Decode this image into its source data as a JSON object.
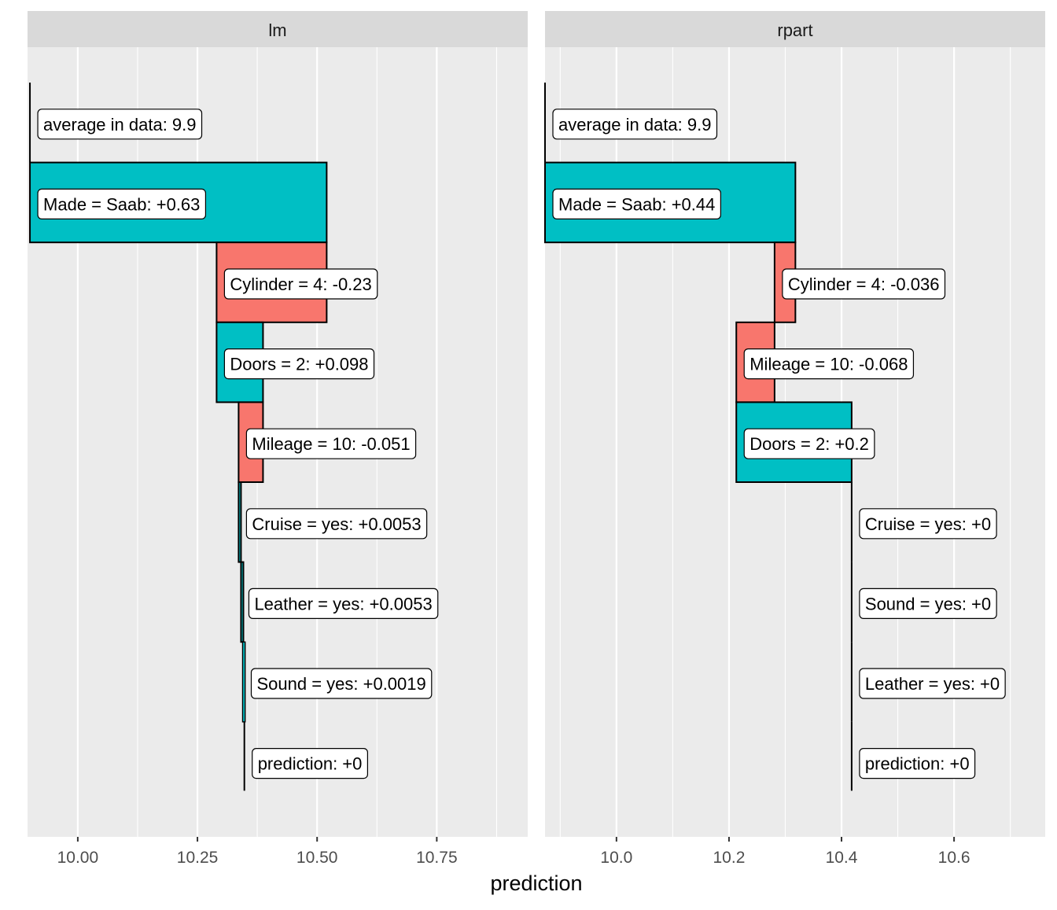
{
  "chart_data": {
    "type": "waterfall",
    "xlabel": "prediction",
    "colors": {
      "positive": "#00BFC4",
      "negative": "#F8766D",
      "panel": "#EBEBEB",
      "strip": "#D9D9D9",
      "grid": "#FFFFFF"
    },
    "panels": [
      {
        "title": "lm",
        "xlim": [
          9.895,
          10.94
        ],
        "ticks": [
          10.0,
          10.25,
          10.5,
          10.75
        ],
        "tick_labels": [
          "10.00",
          "10.25",
          "10.50",
          "10.75"
        ],
        "minor_ticks": [
          10.125,
          10.375,
          10.625,
          10.875
        ],
        "steps": [
          {
            "label": "average in data: 9.9",
            "start": 9.9,
            "end": 9.9,
            "kind": "baseline"
          },
          {
            "label": "Made = Saab: +0.63",
            "start": 9.9,
            "end": 10.52,
            "kind": "positive"
          },
          {
            "label": "Cylinder = 4: -0.23",
            "start": 10.52,
            "end": 10.29,
            "kind": "negative"
          },
          {
            "label": "Doors = 2: +0.098",
            "start": 10.29,
            "end": 10.387,
            "kind": "positive"
          },
          {
            "label": "Mileage = 10: -0.051",
            "start": 10.387,
            "end": 10.336,
            "kind": "negative"
          },
          {
            "label": "Cruise = yes: +0.0053",
            "start": 10.336,
            "end": 10.341,
            "kind": "positive"
          },
          {
            "label": "Leather = yes: +0.0053",
            "start": 10.341,
            "end": 10.346,
            "kind": "positive"
          },
          {
            "label": "Sound = yes: +0.0019",
            "start": 10.346,
            "end": 10.348,
            "kind": "positive"
          },
          {
            "label": "prediction: +0",
            "start": 10.348,
            "end": 10.348,
            "kind": "prediction"
          }
        ]
      },
      {
        "title": "rpart",
        "xlim": [
          9.873,
          10.762
        ],
        "ticks": [
          10.0,
          10.2,
          10.4,
          10.6
        ],
        "tick_labels": [
          "10.0",
          "10.2",
          "10.4",
          "10.6"
        ],
        "minor_ticks": [
          9.9,
          10.1,
          10.3,
          10.5,
          10.7
        ],
        "steps": [
          {
            "label": "average in data: 9.9",
            "start": 9.873,
            "end": 9.873,
            "kind": "baseline"
          },
          {
            "label": "Made = Saab: +0.44",
            "start": 9.873,
            "end": 10.318,
            "kind": "positive"
          },
          {
            "label": "Cylinder = 4: -0.036",
            "start": 10.318,
            "end": 10.281,
            "kind": "negative"
          },
          {
            "label": "Mileage = 10: -0.068",
            "start": 10.281,
            "end": 10.213,
            "kind": "negative"
          },
          {
            "label": "Doors = 2: +0.2",
            "start": 10.213,
            "end": 10.418,
            "kind": "positive"
          },
          {
            "label": "Cruise = yes: +0",
            "start": 10.418,
            "end": 10.418,
            "kind": "zero"
          },
          {
            "label": "Sound = yes: +0",
            "start": 10.418,
            "end": 10.418,
            "kind": "zero"
          },
          {
            "label": "Leather = yes: +0",
            "start": 10.418,
            "end": 10.418,
            "kind": "zero"
          },
          {
            "label": "prediction: +0",
            "start": 10.418,
            "end": 10.418,
            "kind": "prediction"
          }
        ]
      }
    ]
  }
}
